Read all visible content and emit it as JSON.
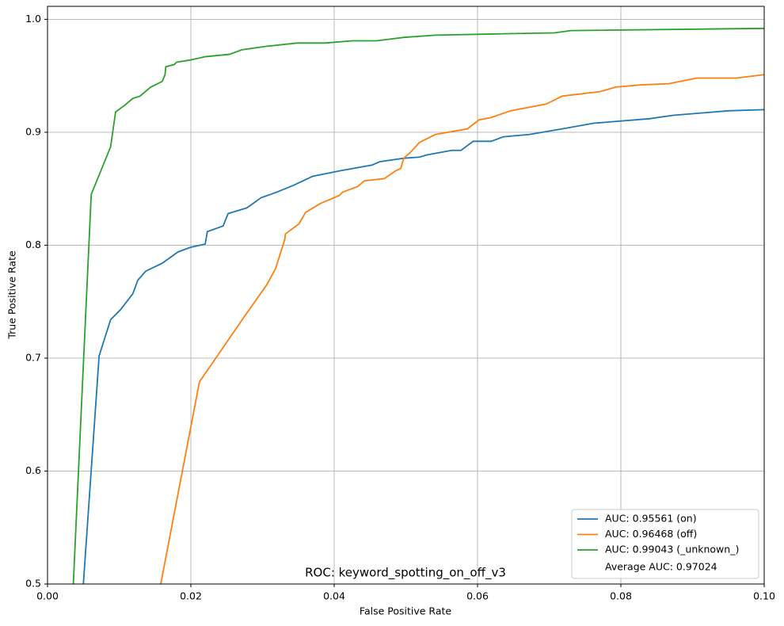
{
  "chart_data": {
    "type": "line",
    "title": "ROC: keyword_spotting_on_off_v3",
    "x_label": "False Positive Rate",
    "y_label": "True Positive Rate",
    "xlim": [
      0,
      0.1
    ],
    "ylim": [
      0.5,
      1.0115
    ],
    "xticks": [
      {
        "value": 0,
        "label": "0.00"
      },
      {
        "value": 0.02,
        "label": "0.02"
      },
      {
        "value": 0.04,
        "label": "0.04"
      },
      {
        "value": 0.06,
        "label": "0.06"
      },
      {
        "value": 0.08,
        "label": "0.08"
      },
      {
        "value": 0.1,
        "label": "0.10"
      }
    ],
    "yticks": [
      0.5,
      0.6,
      0.7,
      0.8,
      0.9,
      {
        "value": 1,
        "label": "1.0"
      }
    ],
    "grid": true,
    "legend": "lower right",
    "legend_note": "Average AUC: 0.97024",
    "series": [
      {
        "name": "AUC: 0.95561 (on)",
        "color": "#1f77b4",
        "x": [
          0.005,
          0.0072,
          0.0088,
          0.0102,
          0.0119,
          0.0126,
          0.0137,
          0.016,
          0.0182,
          0.0199,
          0.022,
          0.0223,
          0.0245,
          0.0252,
          0.0278,
          0.0298,
          0.032,
          0.0343,
          0.037,
          0.0409,
          0.0453,
          0.0464,
          0.0497,
          0.0519,
          0.053,
          0.0564,
          0.0577,
          0.0594,
          0.0619,
          0.0636,
          0.0672,
          0.0718,
          0.0762,
          0.084,
          0.0873,
          0.095,
          0.1
        ],
        "values": [
          0.5,
          0.702,
          0.734,
          0.743,
          0.757,
          0.769,
          0.777,
          0.784,
          0.794,
          0.798,
          0.801,
          0.812,
          0.817,
          0.828,
          0.833,
          0.842,
          0.847,
          0.853,
          0.861,
          0.866,
          0.871,
          0.874,
          0.877,
          0.878,
          0.88,
          0.884,
          0.884,
          0.892,
          0.892,
          0.896,
          0.898,
          0.903,
          0.908,
          0.912,
          0.915,
          0.919,
          0.92
        ]
      },
      {
        "name": "AUC: 0.96468 (off)",
        "color": "#ff7f0e",
        "x": [
          0.0158,
          0.0212,
          0.0276,
          0.0306,
          0.0318,
          0.0331,
          0.0332,
          0.0351,
          0.036,
          0.0381,
          0.0407,
          0.0412,
          0.0433,
          0.0442,
          0.047,
          0.0486,
          0.0493,
          0.0497,
          0.0506,
          0.0519,
          0.0541,
          0.0586,
          0.0602,
          0.0619,
          0.0646,
          0.0696,
          0.0718,
          0.0771,
          0.0793,
          0.0829,
          0.0867,
          0.0906,
          0.0961,
          0.1
        ],
        "values": [
          0.5,
          0.679,
          0.738,
          0.765,
          0.779,
          0.805,
          0.81,
          0.819,
          0.829,
          0.837,
          0.844,
          0.847,
          0.852,
          0.857,
          0.859,
          0.866,
          0.868,
          0.877,
          0.882,
          0.891,
          0.898,
          0.903,
          0.911,
          0.913,
          0.919,
          0.925,
          0.932,
          0.936,
          0.94,
          0.942,
          0.943,
          0.948,
          0.948,
          0.951
        ]
      },
      {
        "name": "AUC: 0.99043 (_unknown_)",
        "color": "#2ca02c",
        "x": [
          0.0036,
          0.005,
          0.0061,
          0.0088,
          0.0095,
          0.0108,
          0.0119,
          0.0129,
          0.0144,
          0.016,
          0.0164,
          0.0165,
          0.0177,
          0.018,
          0.0199,
          0.0221,
          0.0254,
          0.0271,
          0.0304,
          0.0348,
          0.0387,
          0.0425,
          0.0459,
          0.0497,
          0.0541,
          0.0619,
          0.0707,
          0.073,
          0.1
        ],
        "values": [
          0.5,
          0.694,
          0.845,
          0.887,
          0.918,
          0.924,
          0.93,
          0.932,
          0.94,
          0.945,
          0.951,
          0.958,
          0.96,
          0.962,
          0.964,
          0.967,
          0.969,
          0.973,
          0.976,
          0.979,
          0.979,
          0.981,
          0.981,
          0.984,
          0.986,
          0.987,
          0.988,
          0.99,
          0.992
        ]
      }
    ]
  }
}
